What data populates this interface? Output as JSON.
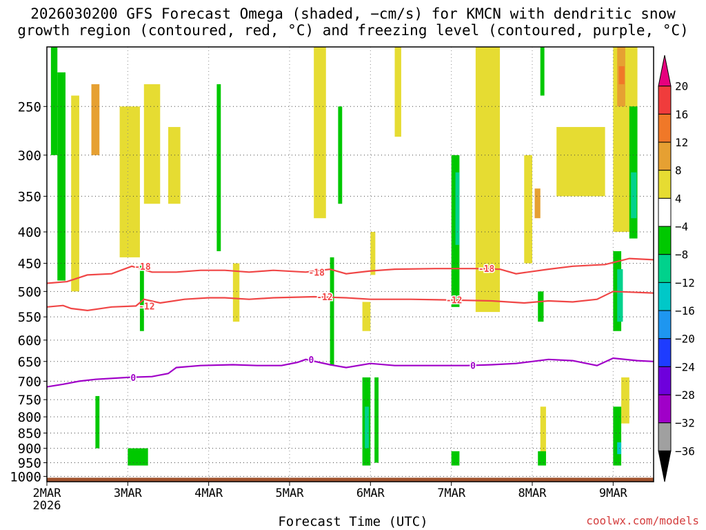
{
  "chart_data": {
    "type": "heatmap",
    "title": "2026030200 GFS Forecast Omega (shaded, −cm/s) for KMCN with dendritic snow",
    "subtitle": "growth region (contoured, red, °C) and freezing level (contoured, purple, °C)",
    "xlabel": "Forecast Time (UTC)",
    "ylabel": "",
    "y_axis": {
      "scale": "log-pressure",
      "inverted": true,
      "range_hPa": [
        1020,
        200
      ],
      "ticks": [
        250,
        300,
        350,
        400,
        450,
        500,
        550,
        600,
        650,
        700,
        750,
        800,
        850,
        900,
        950,
        1000
      ]
    },
    "x_axis": {
      "start": "2026-03-02T00Z",
      "end": "2026-03-09T12Z",
      "ticks": [
        {
          "day": 0,
          "label": "2MAR",
          "sublabel": "2026"
        },
        {
          "day": 1,
          "label": "3MAR"
        },
        {
          "day": 2,
          "label": "4MAR"
        },
        {
          "day": 3,
          "label": "5MAR"
        },
        {
          "day": 4,
          "label": "6MAR"
        },
        {
          "day": 5,
          "label": "7MAR"
        },
        {
          "day": 6,
          "label": "8MAR"
        },
        {
          "day": 7,
          "label": "9MAR"
        }
      ]
    },
    "grid": true,
    "colorbar": {
      "labels": [
        "20",
        "16",
        "12",
        "8",
        "4",
        "−4",
        "−8",
        "−12",
        "−16",
        "−20",
        "−24",
        "−28",
        "−32",
        "−36"
      ],
      "bins": [
        {
          "range": ">20",
          "color": "#e6007e"
        },
        {
          "range": "16 to 20",
          "color": "#f03c3c"
        },
        {
          "range": "12 to 16",
          "color": "#f07828"
        },
        {
          "range": "8 to 12",
          "color": "#e6a032"
        },
        {
          "range": "4 to 8",
          "color": "#e6dc32"
        },
        {
          "range": "-4 to 4",
          "color": "#ffffff"
        },
        {
          "range": "-8 to -4",
          "color": "#00c800"
        },
        {
          "range": "-12 to -8",
          "color": "#00d28c"
        },
        {
          "range": "-16 to -12",
          "color": "#00c8c8"
        },
        {
          "range": "-20 to -16",
          "color": "#1e96f0"
        },
        {
          "range": "-24 to -20",
          "color": "#1e3cff"
        },
        {
          "range": "-28 to -24",
          "color": "#6e00dc"
        },
        {
          "range": "-32 to -28",
          "color": "#a000c8"
        },
        {
          "range": "-36 to -32",
          "color": "#a0a0a0"
        },
        {
          "range": "<-36",
          "color": "#000000"
        }
      ]
    },
    "contours": [
      {
        "level": -18,
        "color": "#f04646",
        "label": "-18",
        "points": [
          [
            0,
            485
          ],
          [
            0.25,
            482
          ],
          [
            0.5,
            470
          ],
          [
            0.8,
            468
          ],
          [
            1.05,
            455
          ],
          [
            1.3,
            465
          ],
          [
            1.6,
            465
          ],
          [
            1.9,
            462
          ],
          [
            2.2,
            462
          ],
          [
            2.5,
            465
          ],
          [
            2.8,
            462
          ],
          [
            3.2,
            465
          ],
          [
            3.5,
            460
          ],
          [
            3.7,
            468
          ],
          [
            4.0,
            463
          ],
          [
            4.3,
            460
          ],
          [
            4.8,
            459
          ],
          [
            5.3,
            459
          ],
          [
            5.6,
            460
          ],
          [
            5.8,
            468
          ],
          [
            6.2,
            460
          ],
          [
            6.5,
            455
          ],
          [
            6.9,
            452
          ],
          [
            7.2,
            442
          ],
          [
            7.5,
            444
          ]
        ]
      },
      {
        "level": -12,
        "color": "#f04646",
        "label": "-12",
        "points": [
          [
            0,
            530
          ],
          [
            0.2,
            527
          ],
          [
            0.3,
            533
          ],
          [
            0.5,
            537
          ],
          [
            0.8,
            530
          ],
          [
            1.1,
            528
          ],
          [
            1.2,
            515
          ],
          [
            1.4,
            522
          ],
          [
            1.7,
            515
          ],
          [
            2.0,
            512
          ],
          [
            2.2,
            512
          ],
          [
            2.5,
            515
          ],
          [
            2.8,
            512
          ],
          [
            3.3,
            510
          ],
          [
            3.7,
            512
          ],
          [
            4.0,
            515
          ],
          [
            4.5,
            515
          ],
          [
            4.9,
            516
          ],
          [
            5.5,
            518
          ],
          [
            5.9,
            522
          ],
          [
            6.2,
            518
          ],
          [
            6.5,
            520
          ],
          [
            6.8,
            515
          ],
          [
            7.0,
            500
          ],
          [
            7.5,
            503
          ]
        ]
      },
      {
        "level": 0,
        "color": "#a000c8",
        "label": "0",
        "points": [
          [
            0,
            715
          ],
          [
            0.2,
            708
          ],
          [
            0.4,
            700
          ],
          [
            0.6,
            695
          ],
          [
            1.0,
            690
          ],
          [
            1.3,
            688
          ],
          [
            1.5,
            680
          ],
          [
            1.6,
            665
          ],
          [
            1.9,
            660
          ],
          [
            2.3,
            658
          ],
          [
            2.6,
            660
          ],
          [
            2.9,
            660
          ],
          [
            3.1,
            652
          ],
          [
            3.2,
            645
          ],
          [
            3.5,
            658
          ],
          [
            3.7,
            665
          ],
          [
            4.0,
            655
          ],
          [
            4.3,
            660
          ],
          [
            4.8,
            660
          ],
          [
            5.2,
            660
          ],
          [
            5.5,
            658
          ],
          [
            5.8,
            655
          ],
          [
            6.0,
            650
          ],
          [
            6.2,
            645
          ],
          [
            6.5,
            648
          ],
          [
            6.8,
            660
          ],
          [
            7.0,
            642
          ],
          [
            7.3,
            648
          ],
          [
            7.5,
            650
          ]
        ]
      }
    ],
    "series": [
      {
        "range": "4 to 8",
        "cells": [
          [
            0.3,
            240,
            0.1,
            500
          ],
          [
            0.9,
            250,
            0.25,
            440
          ],
          [
            1.2,
            230,
            0.2,
            360
          ],
          [
            1.5,
            270,
            0.15,
            360
          ],
          [
            2.3,
            450,
            0.08,
            560
          ],
          [
            3.3,
            200,
            0.15,
            380
          ],
          [
            3.9,
            520,
            0.1,
            580
          ],
          [
            4.0,
            400,
            0.06,
            470
          ],
          [
            4.3,
            200,
            0.08,
            280
          ],
          [
            5.3,
            200,
            0.3,
            540
          ],
          [
            5.9,
            300,
            0.1,
            450
          ],
          [
            6.3,
            270,
            0.6,
            350
          ],
          [
            6.1,
            770,
            0.07,
            950
          ],
          [
            7.0,
            200,
            0.3,
            400
          ],
          [
            7.1,
            690,
            0.1,
            820
          ]
        ]
      },
      {
        "range": "8 to 12",
        "cells": [
          [
            0.55,
            230,
            0.1,
            300
          ],
          [
            6.03,
            340,
            0.07,
            380
          ],
          [
            7.05,
            200,
            0.1,
            250
          ]
        ]
      },
      {
        "range": "12 to 16",
        "cells": [
          [
            7.07,
            215,
            0.07,
            230
          ]
        ]
      },
      {
        "range": "-8 to -4",
        "cells": [
          [
            0.05,
            200,
            0.08,
            300
          ],
          [
            0.13,
            220,
            0.1,
            480
          ],
          [
            1.0,
            900,
            0.25,
            960
          ],
          [
            1.15,
            450,
            0.05,
            580
          ],
          [
            2.1,
            230,
            0.05,
            430
          ],
          [
            3.5,
            440,
            0.05,
            660
          ],
          [
            3.6,
            250,
            0.05,
            360
          ],
          [
            5.0,
            300,
            0.1,
            530
          ],
          [
            5.0,
            910,
            0.1,
            960
          ],
          [
            6.07,
            500,
            0.07,
            560
          ],
          [
            6.07,
            910,
            0.1,
            960
          ],
          [
            7.0,
            430,
            0.1,
            580
          ],
          [
            7.2,
            250,
            0.1,
            410
          ],
          [
            3.9,
            690,
            0.1,
            960
          ],
          [
            4.05,
            690,
            0.05,
            950
          ],
          [
            6.1,
            200,
            0.05,
            240
          ],
          [
            0.6,
            740,
            0.05,
            900
          ],
          [
            7.0,
            770,
            0.1,
            960
          ]
        ]
      },
      {
        "range": "-12 to -8",
        "cells": [
          [
            5.05,
            320,
            0.05,
            420
          ],
          [
            7.05,
            460,
            0.07,
            560
          ],
          [
            7.22,
            320,
            0.07,
            380
          ],
          [
            3.93,
            770,
            0.05,
            900
          ]
        ]
      },
      {
        "range": "-16 to -12",
        "cells": [
          [
            7.05,
            880,
            0.05,
            920
          ]
        ]
      }
    ],
    "annotations": [
      "coolwx.com/models"
    ]
  }
}
